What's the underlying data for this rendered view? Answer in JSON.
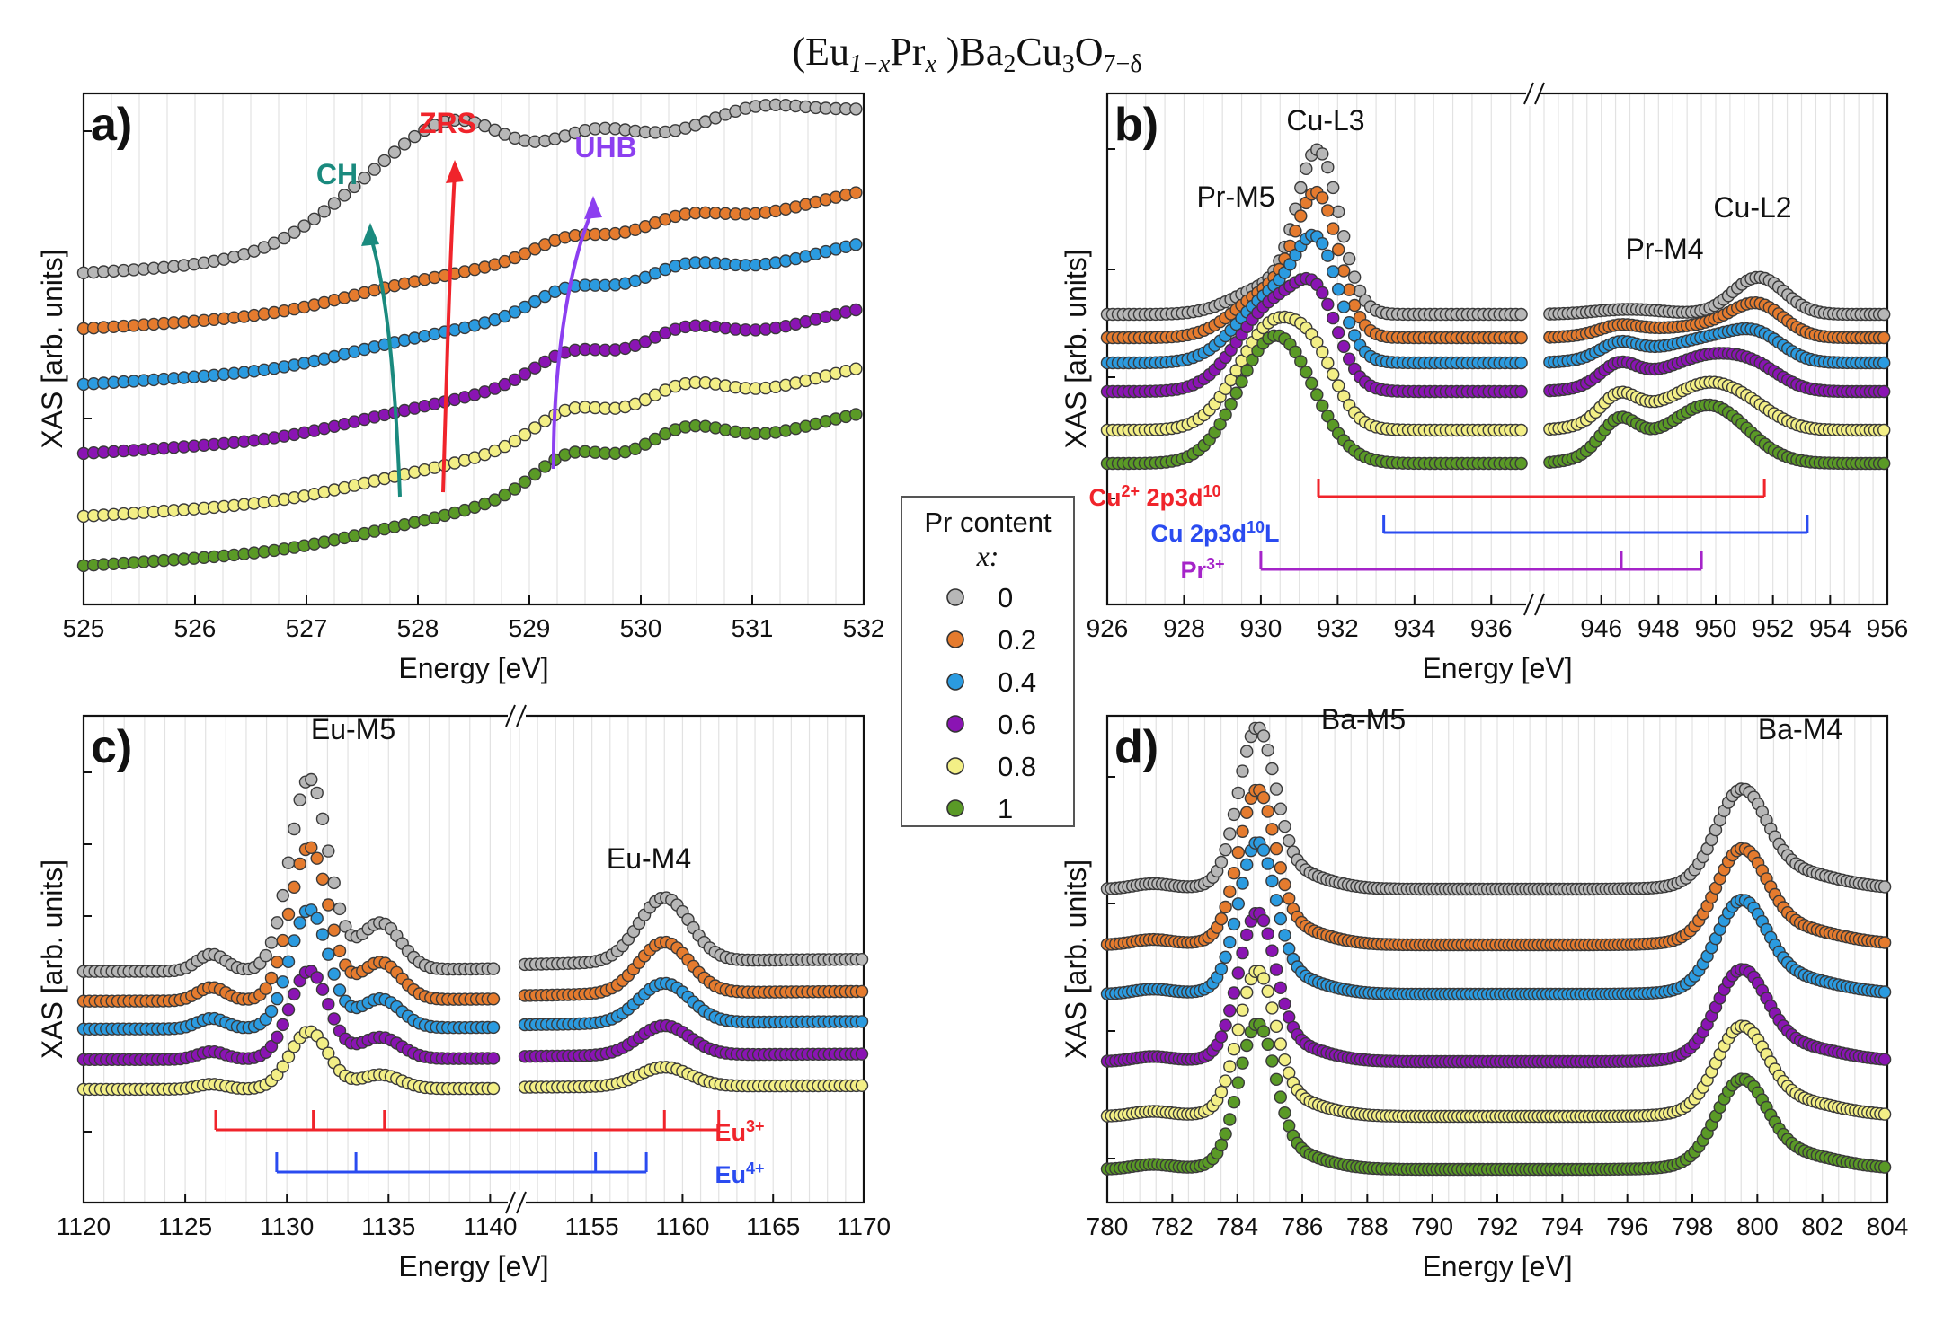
{
  "figure_title": {
    "base": "(Eu",
    "s1": "1−x",
    "pr": "Pr",
    "s2": "x",
    "rest": " )Ba",
    "s3": "2",
    "cu": "Cu",
    "s4": "3",
    "o": "O",
    "s5": "7−δ"
  },
  "series_colors": [
    "#b7b7b7",
    "#e57b2e",
    "#2b9be0",
    "#8a14b3",
    "#f3ef86",
    "#5a9a26"
  ],
  "legend": {
    "title": "Pr content",
    "subtitle": "x:",
    "entries": [
      "0",
      "0.2",
      "0.4",
      "0.6",
      "0.8",
      "1"
    ]
  },
  "chart_data": [
    {
      "panel": "a)",
      "type": "scatter",
      "xlabel": "Energy [eV]",
      "ylabel": "XAS [arb. units]",
      "xlim": [
        525,
        532
      ],
      "xticks": [
        "525",
        "526",
        "527",
        "528",
        "529",
        "530",
        "531",
        "532"
      ],
      "annotations": [
        {
          "text": "CH",
          "color": "#1a8a7e"
        },
        {
          "text": "ZRS",
          "color": "#f0242b"
        },
        {
          "text": "UHB",
          "color": "#8c3ff0"
        }
      ],
      "series_x0": "0",
      "series": "x = 0 ... 1 (6 series, see legend)"
    },
    {
      "panel": "b)",
      "type": "scatter",
      "xlabel": "Energy [eV]",
      "ylabel": "XAS [arb. units]",
      "xlim_left": [
        926,
        937
      ],
      "xlim_right": [
        944,
        956
      ],
      "xticks": [
        "926",
        "928",
        "930",
        "932",
        "934",
        "936",
        "946",
        "948",
        "950",
        "952",
        "954",
        "956"
      ],
      "peak_labels": [
        "Cu-L3",
        "Pr-M5",
        "Cu-L2",
        "Pr-M4"
      ],
      "brackets": [
        {
          "label": "Cu",
          "sup": "2+",
          "label2": " 2p3d",
          "sup2": "10",
          "color": "#f0242b",
          "x": [
            931.5,
            951.7
          ],
          "ticks": [
            931.5,
            951.7
          ]
        },
        {
          "label": "Cu  2p3d",
          "sup": "10",
          "label2": "L",
          "sup2": "",
          "color": "#2a4bf0",
          "x": [
            933.2,
            953.2
          ],
          "ticks": [
            933.2,
            953.2
          ]
        },
        {
          "label": "Pr",
          "sup": "3+",
          "label2": "",
          "sup2": "",
          "color": "#a524c9",
          "x": [
            930,
            949.5
          ],
          "ticks": [
            930,
            946.7,
            949.5
          ]
        }
      ]
    },
    {
      "panel": "c)",
      "type": "scatter",
      "xlabel": "Energy [eV]",
      "ylabel": "XAS [arb. units]",
      "xlim_left": [
        1120,
        1141
      ],
      "xlim_right": [
        1151,
        1170
      ],
      "xticks": [
        "1120",
        "1125",
        "1130",
        "1135",
        "1140",
        "1155",
        "1160",
        "1165",
        "1170"
      ],
      "peak_labels": [
        "Eu-M5",
        "Eu-M4"
      ],
      "brackets": [
        {
          "label": "Eu",
          "sup": "3+",
          "color": "#f0242b",
          "x": [
            1126.5,
            1162
          ],
          "ticks": [
            1126.5,
            1131.3,
            1134.8,
            1159,
            1162
          ]
        },
        {
          "label": "Eu",
          "sup": "4+",
          "color": "#2a4bf0",
          "x": [
            1129.5,
            1158
          ],
          "ticks": [
            1129.5,
            1133.4,
            1155.2,
            1158
          ]
        }
      ]
    },
    {
      "panel": "d)",
      "type": "scatter",
      "xlabel": "Energy [eV]",
      "ylabel": "XAS [arb. units]",
      "xlim": [
        780,
        804
      ],
      "xticks": [
        "780",
        "782",
        "784",
        "786",
        "788",
        "790",
        "792",
        "794",
        "796",
        "798",
        "800",
        "802",
        "804"
      ],
      "peak_labels": [
        "Ba-M5",
        "Ba-M4"
      ]
    }
  ]
}
